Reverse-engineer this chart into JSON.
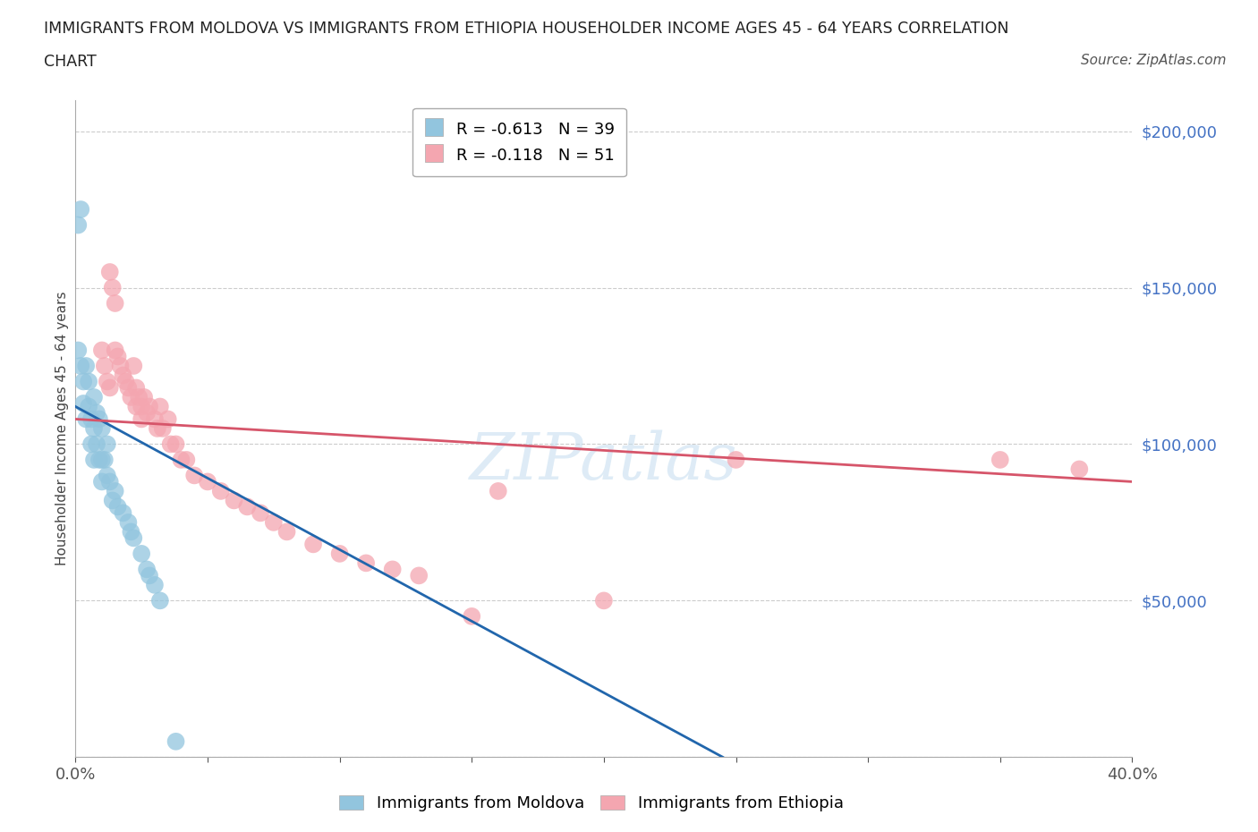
{
  "title_line1": "IMMIGRANTS FROM MOLDOVA VS IMMIGRANTS FROM ETHIOPIA HOUSEHOLDER INCOME AGES 45 - 64 YEARS CORRELATION",
  "title_line2": "CHART",
  "source": "Source: ZipAtlas.com",
  "ylabel": "Householder Income Ages 45 - 64 years",
  "xlim": [
    0,
    0.4
  ],
  "ylim": [
    0,
    210000
  ],
  "moldova_color": "#92c5de",
  "ethiopia_color": "#f4a6b0",
  "moldova_line_color": "#2166ac",
  "ethiopia_line_color": "#d6556a",
  "moldova_R": -0.613,
  "moldova_N": 39,
  "ethiopia_R": -0.118,
  "ethiopia_N": 51,
  "watermark": "ZIPatlas",
  "background_color": "#ffffff",
  "grid_color": "#cccccc",
  "moldova_x": [
    0.001,
    0.002,
    0.001,
    0.002,
    0.003,
    0.003,
    0.004,
    0.004,
    0.005,
    0.005,
    0.006,
    0.006,
    0.007,
    0.007,
    0.007,
    0.008,
    0.008,
    0.009,
    0.009,
    0.01,
    0.01,
    0.01,
    0.011,
    0.012,
    0.012,
    0.013,
    0.014,
    0.015,
    0.016,
    0.018,
    0.02,
    0.021,
    0.022,
    0.025,
    0.027,
    0.028,
    0.03,
    0.032,
    0.038
  ],
  "moldova_y": [
    170000,
    175000,
    130000,
    125000,
    120000,
    113000,
    125000,
    108000,
    120000,
    112000,
    108000,
    100000,
    115000,
    105000,
    95000,
    110000,
    100000,
    108000,
    95000,
    105000,
    95000,
    88000,
    95000,
    100000,
    90000,
    88000,
    82000,
    85000,
    80000,
    78000,
    75000,
    72000,
    70000,
    65000,
    60000,
    58000,
    55000,
    50000,
    5000
  ],
  "ethiopia_x": [
    0.01,
    0.011,
    0.012,
    0.013,
    0.013,
    0.014,
    0.015,
    0.015,
    0.016,
    0.017,
    0.018,
    0.019,
    0.02,
    0.021,
    0.022,
    0.023,
    0.023,
    0.024,
    0.025,
    0.025,
    0.026,
    0.027,
    0.028,
    0.03,
    0.031,
    0.032,
    0.033,
    0.035,
    0.036,
    0.038,
    0.04,
    0.042,
    0.045,
    0.05,
    0.055,
    0.06,
    0.065,
    0.07,
    0.075,
    0.08,
    0.09,
    0.1,
    0.11,
    0.12,
    0.13,
    0.15,
    0.16,
    0.2,
    0.25,
    0.35,
    0.38
  ],
  "ethiopia_y": [
    130000,
    125000,
    120000,
    118000,
    155000,
    150000,
    145000,
    130000,
    128000,
    125000,
    122000,
    120000,
    118000,
    115000,
    125000,
    118000,
    112000,
    115000,
    112000,
    108000,
    115000,
    110000,
    112000,
    108000,
    105000,
    112000,
    105000,
    108000,
    100000,
    100000,
    95000,
    95000,
    90000,
    88000,
    85000,
    82000,
    80000,
    78000,
    75000,
    72000,
    68000,
    65000,
    62000,
    60000,
    58000,
    45000,
    85000,
    50000,
    95000,
    95000,
    92000
  ],
  "moldova_line_x0": 0.0,
  "moldova_line_y0": 112000,
  "moldova_line_x1": 0.245,
  "moldova_line_y1": 0,
  "ethiopia_line_x0": 0.0,
  "ethiopia_line_y0": 108000,
  "ethiopia_line_x1": 0.4,
  "ethiopia_line_y1": 88000
}
